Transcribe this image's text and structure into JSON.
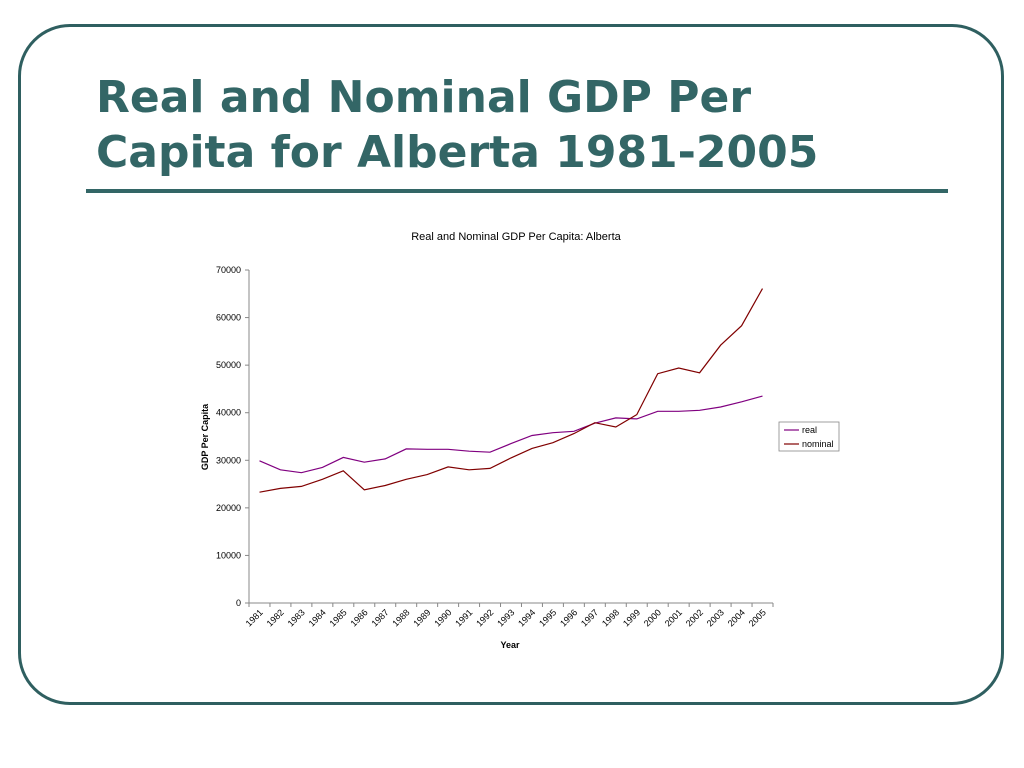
{
  "slide": {
    "title": "Real and Nominal GDP Per Capita for Alberta 1981-2005"
  },
  "colors": {
    "frame": "#2f5f60",
    "title": "#336666",
    "real": "#800080",
    "nominal": "#800000"
  },
  "chart_data": {
    "type": "line",
    "title": "Real and Nominal GDP Per Capita: Alberta",
    "xlabel": "Year",
    "ylabel": "GDP Per Capita",
    "categories": [
      "1981",
      "1982",
      "1983",
      "1984",
      "1985",
      "1986",
      "1987",
      "1988",
      "1989",
      "1990",
      "1991",
      "1992",
      "1993",
      "1994",
      "1995",
      "1996",
      "1997",
      "1998",
      "1999",
      "2000",
      "2001",
      "2002",
      "2003",
      "2004",
      "2005"
    ],
    "ylim": [
      0,
      70000
    ],
    "yticks": [
      0,
      10000,
      20000,
      30000,
      40000,
      50000,
      60000,
      70000
    ],
    "grid": false,
    "legend_position": "right",
    "series": [
      {
        "name": "real",
        "color": "#800080",
        "values": [
          29900,
          28000,
          27400,
          28500,
          30600,
          29600,
          30300,
          32400,
          32300,
          32300,
          31900,
          31700,
          33500,
          35200,
          35800,
          36100,
          37800,
          38900,
          38700,
          40300,
          40300,
          40500,
          41200,
          42300,
          43500
        ]
      },
      {
        "name": "nominal",
        "color": "#800000",
        "values": [
          23300,
          24100,
          24500,
          26000,
          27800,
          23800,
          24700,
          26000,
          27000,
          28600,
          28000,
          28300,
          30500,
          32500,
          33700,
          35600,
          37900,
          37000,
          39600,
          48200,
          49400,
          48400,
          54200,
          58300,
          66100
        ]
      }
    ]
  }
}
